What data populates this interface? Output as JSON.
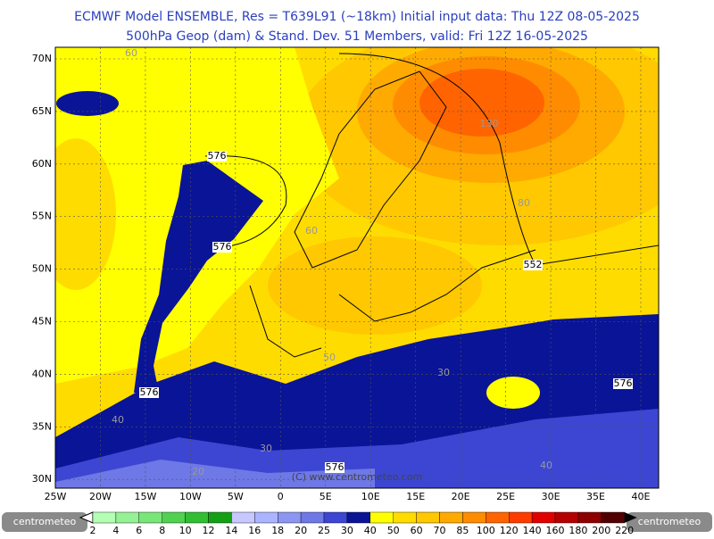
{
  "header": {
    "line1": "ECMWF Model ENSEMBLE, Res = T639L91 (~18km)  Initial input data: Thu 12Z 08-05-2025",
    "line2": "500hPa Geop (dam) & Stand. Dev.    51 Members, valid: Fri 12Z 16-05-2025"
  },
  "map": {
    "lat_labels": [
      "70N",
      "65N",
      "60N",
      "55N",
      "50N",
      "45N",
      "40N",
      "35N",
      "30N"
    ],
    "lon_labels": [
      "25W",
      "20W",
      "15W",
      "10W",
      "5W",
      "0",
      "5E",
      "10E",
      "15E",
      "20E",
      "25E",
      "30E",
      "35E",
      "40E"
    ],
    "contour_labels": [
      "576",
      "576",
      "552",
      "576",
      "576",
      "576"
    ],
    "stddev_labels": [
      "60",
      "130",
      "80",
      "60",
      "50",
      "30",
      "30",
      "20",
      "40",
      "40"
    ],
    "copyright": "(C) www.centrometeo.com"
  },
  "colorbar": {
    "levels": [
      2,
      4,
      6,
      8,
      10,
      12,
      14,
      16,
      18,
      20,
      25,
      30,
      40,
      50,
      60,
      70,
      85,
      100,
      120,
      140,
      160,
      180,
      200,
      220
    ],
    "colors": [
      "#b4ffb4",
      "#96f096",
      "#78e678",
      "#50d250",
      "#32be32",
      "#14a014",
      "#c8c8ff",
      "#aab4ff",
      "#8c96f0",
      "#6e78e6",
      "#3c46d2",
      "#0a1496",
      "#ffff00",
      "#ffdc00",
      "#ffc800",
      "#ffaa00",
      "#ff8c00",
      "#ff6400",
      "#ff3c00",
      "#e10000",
      "#b40000",
      "#8c0000",
      "#500000"
    ]
  },
  "logo": {
    "left": "centrometeo",
    "right": "centrometeo"
  }
}
